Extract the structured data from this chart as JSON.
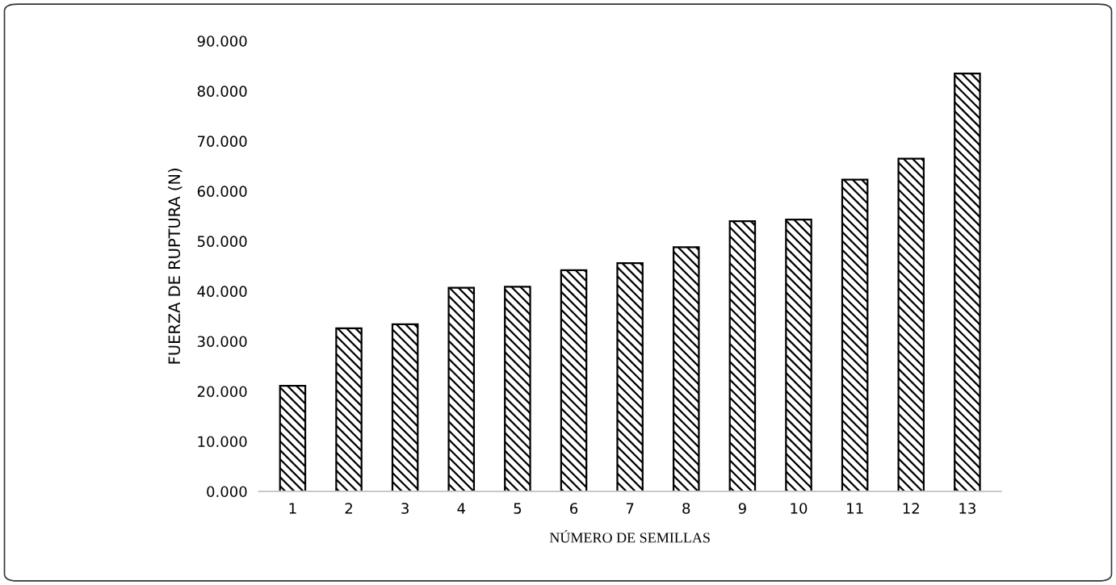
{
  "chart_data": {
    "type": "bar",
    "xlabel": "NÚMERO DE SEMILLAS",
    "ylabel": "FUERZA DE RUPTURA (N)",
    "categories": [
      "1",
      "2",
      "3",
      "4",
      "5",
      "6",
      "7",
      "8",
      "9",
      "10",
      "11",
      "12",
      "13"
    ],
    "values": [
      21.1,
      32.6,
      33.4,
      40.7,
      40.9,
      44.2,
      45.6,
      48.8,
      54.0,
      54.3,
      62.3,
      66.5,
      83.5
    ],
    "color": "#000000",
    "ylim": [
      0,
      90
    ],
    "yticks": [
      {
        "value": 0,
        "label": "0.000"
      },
      {
        "value": 10,
        "label": "10.000"
      },
      {
        "value": 20,
        "label": "20.000"
      },
      {
        "value": 30,
        "label": "30.000"
      },
      {
        "value": 40,
        "label": "40.000"
      },
      {
        "value": 50,
        "label": "50.000"
      },
      {
        "value": 60,
        "label": "60.000"
      },
      {
        "value": 70,
        "label": "70.000"
      },
      {
        "value": 80,
        "label": "80.000"
      },
      {
        "value": 90,
        "label": "90.000"
      }
    ],
    "grid": false,
    "legend": false
  }
}
